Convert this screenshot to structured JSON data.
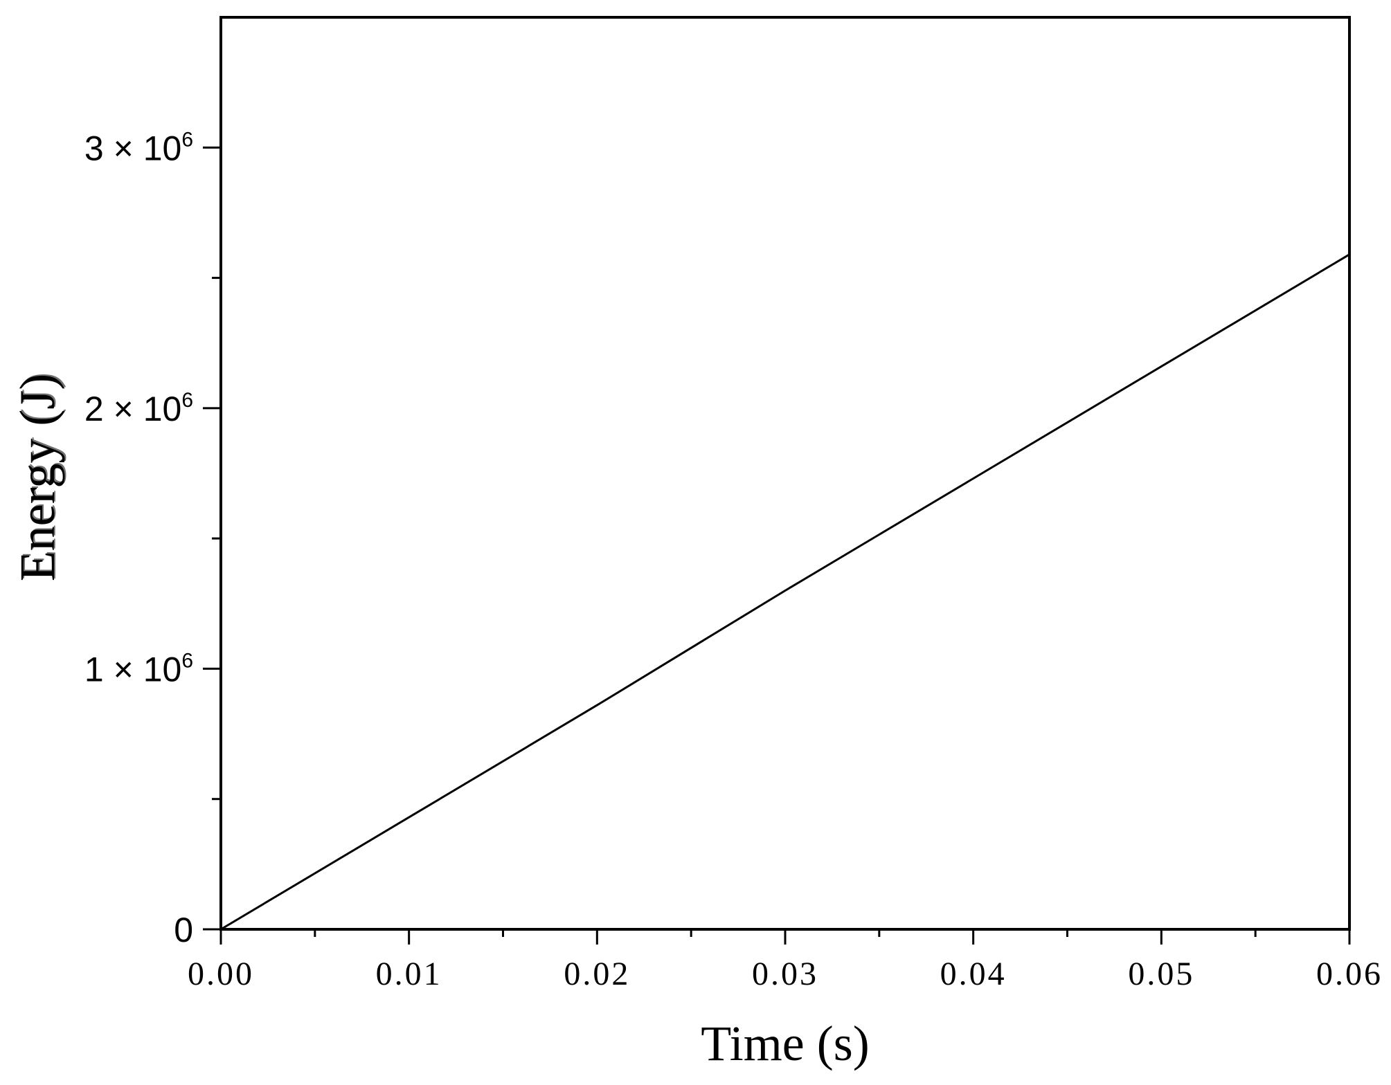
{
  "chart_data": {
    "type": "line",
    "title": "",
    "xlabel": "Time (s)",
    "ylabel": "Energy (J)",
    "xlim": [
      0,
      0.06
    ],
    "ylim": [
      0,
      3500000
    ],
    "x_ticks": [
      0,
      0.01,
      0.02,
      0.03,
      0.04,
      0.05,
      0.06
    ],
    "x_tick_labels": [
      "0.00",
      "0.01",
      "0.02",
      "0.03",
      "0.04",
      "0.05",
      "0.06"
    ],
    "x_minor_ticks": [
      0.005,
      0.015,
      0.025,
      0.035,
      0.045,
      0.055
    ],
    "y_ticks": [
      0,
      1000000,
      2000000,
      3000000
    ],
    "y_tick_labels": [
      {
        "text": "0",
        "sup": ""
      },
      {
        "text": "1 × 10",
        "sup": "6"
      },
      {
        "text": "2 × 10",
        "sup": "6"
      },
      {
        "text": "3 × 10",
        "sup": "6"
      }
    ],
    "y_minor_ticks": [
      500000,
      1500000,
      2500000
    ],
    "grid": false,
    "series": [
      {
        "x": [
          0,
          0.01,
          0.02,
          0.03,
          0.04,
          0.05,
          0.06
        ],
        "y": [
          0,
          430000,
          860000,
          1300000,
          1730000,
          2160000,
          2590000
        ],
        "color": "#000000"
      }
    ],
    "colors": {
      "axis": "#000000",
      "line": "#000000",
      "ylabel_shadow": "#c8a070"
    }
  }
}
